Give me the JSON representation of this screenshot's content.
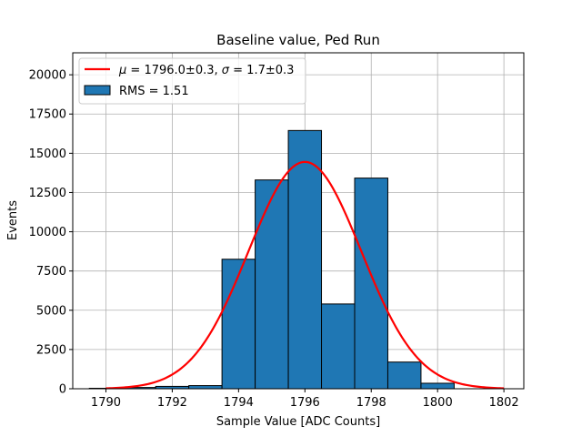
{
  "chart_data": {
    "type": "bar",
    "title": "Baseline value, Ped Run",
    "xlabel": "Sample Value [ADC Counts]",
    "ylabel": "Events",
    "xlim": [
      1789,
      1802.6
    ],
    "ylim": [
      0,
      21400
    ],
    "xticks": [
      1790,
      1792,
      1794,
      1796,
      1798,
      1800,
      1802
    ],
    "yticks": [
      0,
      2500,
      5000,
      7500,
      10000,
      12500,
      15000,
      17500,
      20000
    ],
    "ytick_labels": [
      "0",
      "2500",
      "5000",
      "7500",
      "10000",
      "12500",
      "15000",
      "17500",
      "20000"
    ],
    "grid": true,
    "legend_position": "top-left",
    "histogram": {
      "name": "RMS = 1.51",
      "color": "#1f77b4",
      "edge_color": "#000000",
      "bin_edges": [
        1789.5,
        1790.5,
        1791.5,
        1792.5,
        1793.5,
        1794.5,
        1795.5,
        1796.5,
        1797.5,
        1798.5,
        1799.5,
        1800.5
      ],
      "counts": [
        30,
        80,
        150,
        200,
        8250,
        13300,
        16450,
        5400,
        13420,
        1700,
        350
      ]
    },
    "fit": {
      "name": "μ = 1796.0±0.3, σ = 1.7±0.3",
      "label_mu": "μ",
      "label_mu_value": " = 1796.0±0.3, ",
      "label_sigma": "σ",
      "label_sigma_value": " = 1.7±0.3",
      "color": "#ff0000",
      "mu": 1796.0,
      "sigma": 1.7,
      "amplitude": 14450,
      "x_range": [
        1790,
        1802
      ]
    }
  }
}
